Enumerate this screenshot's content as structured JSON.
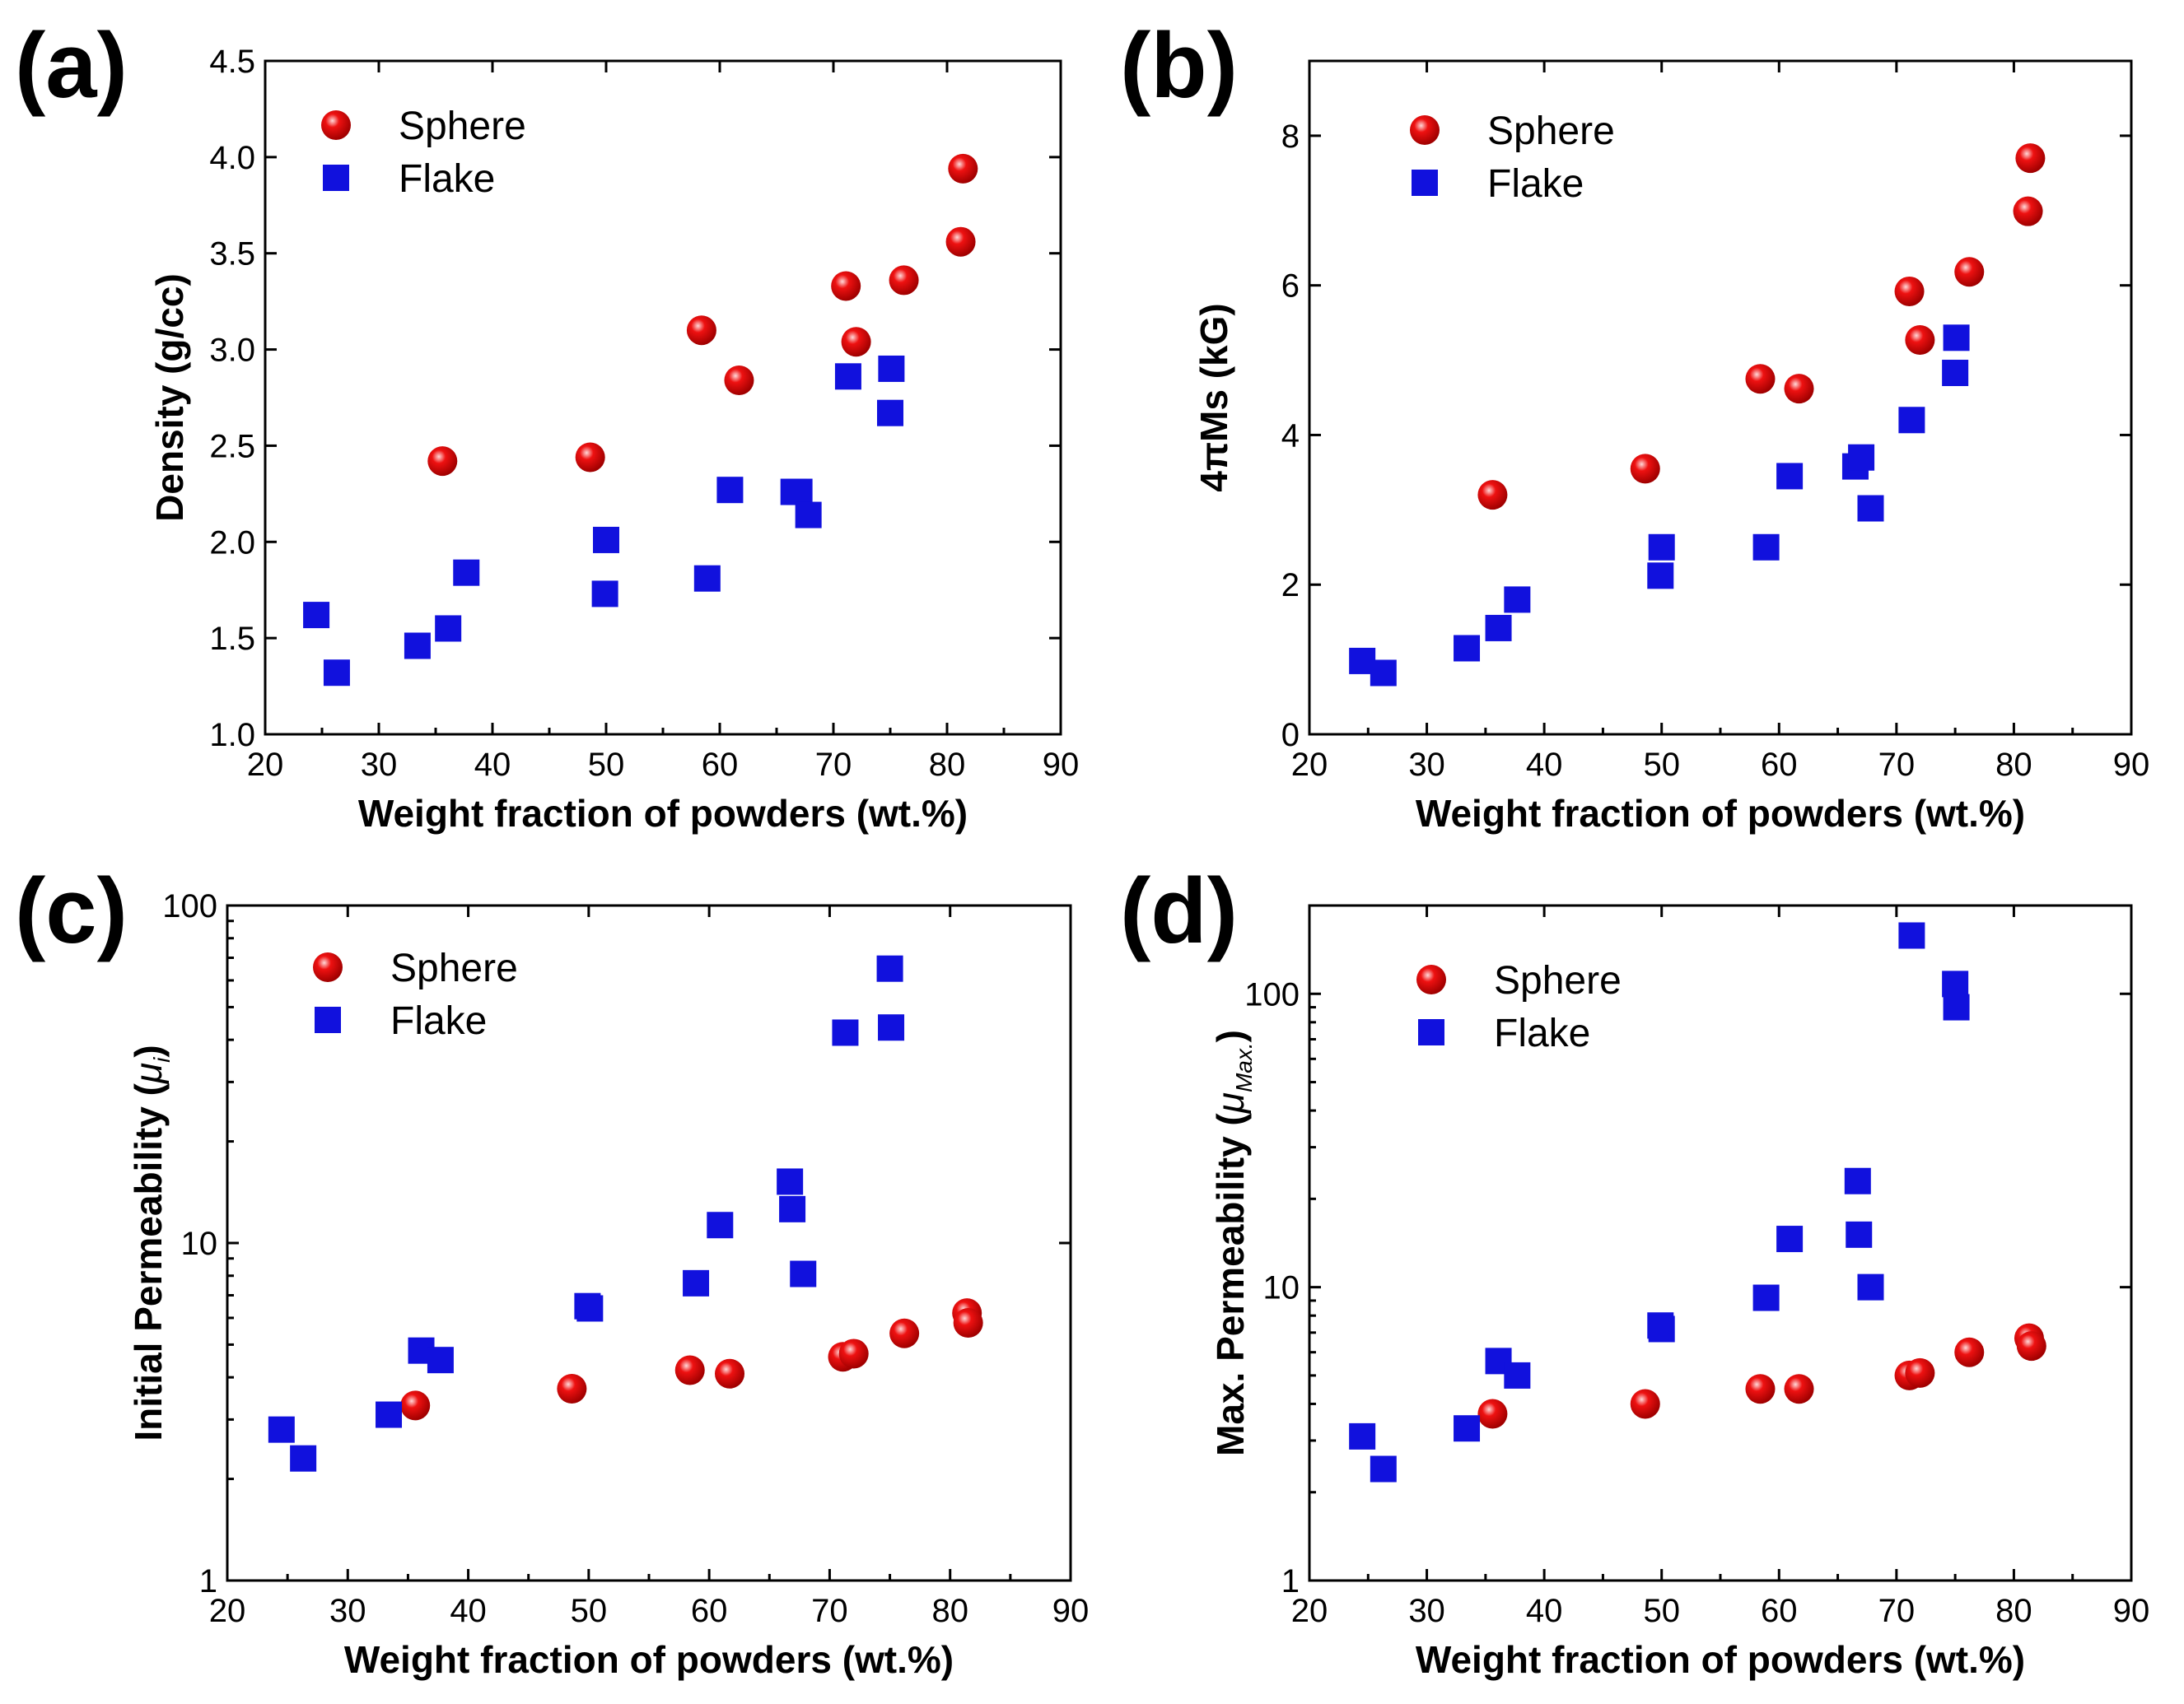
{
  "colors": {
    "sphere": "#ee1111",
    "flake": "#1111dd"
  },
  "chart_data": [
    {
      "type": "scatter",
      "panel_label": "(a)",
      "title": "",
      "xlabel": "Weight fraction of powders (wt.%)",
      "ylabel": "Density (g/cc)",
      "xlim": [
        20,
        90
      ],
      "ylim": [
        1.0,
        4.5
      ],
      "yscale": "linear",
      "xticks": [
        20,
        30,
        40,
        50,
        60,
        70,
        80,
        90
      ],
      "yticks": [
        1.0,
        1.5,
        2.0,
        2.5,
        3.0,
        3.5,
        4.0,
        4.5
      ],
      "ytick_labels": [
        "1.0",
        "1.5",
        "2.0",
        "2.5",
        "3.0",
        "3.5",
        "4.0",
        "4.5"
      ],
      "legend_position": "top-left",
      "series": [
        {
          "name": "Sphere",
          "marker": "circle",
          "x": [
            35.6,
            48.6,
            58.4,
            61.7,
            71.1,
            72.0,
            76.2,
            81.2,
            81.4
          ],
          "y": [
            2.42,
            2.44,
            3.1,
            2.84,
            3.33,
            3.04,
            3.36,
            3.56,
            3.94
          ]
        },
        {
          "name": "Flake",
          "marker": "square",
          "x": [
            24.5,
            26.3,
            33.4,
            36.1,
            37.7,
            49.9,
            50.0,
            58.9,
            60.9,
            66.5,
            67.0,
            67.8,
            71.3,
            75.0,
            75.1
          ],
          "y": [
            1.62,
            1.32,
            1.46,
            1.55,
            1.84,
            1.73,
            2.01,
            1.81,
            2.27,
            2.26,
            2.26,
            2.14,
            2.86,
            2.67,
            2.9
          ]
        }
      ]
    },
    {
      "type": "scatter",
      "panel_label": "(b)",
      "title": "",
      "xlabel": "Weight fraction of powders (wt.%)",
      "ylabel": "4πMs (kG)",
      "xlim": [
        20,
        90
      ],
      "ylim": [
        0,
        9
      ],
      "yscale": "linear",
      "xticks": [
        20,
        30,
        40,
        50,
        60,
        70,
        80,
        90
      ],
      "yticks": [
        0,
        2,
        4,
        6,
        8
      ],
      "ytick_labels": [
        "0",
        "2",
        "4",
        "6",
        "8"
      ],
      "legend_position": "top-left",
      "series": [
        {
          "name": "Sphere",
          "marker": "circle",
          "x": [
            35.6,
            48.6,
            58.4,
            61.7,
            71.1,
            72.0,
            76.2,
            81.2,
            81.4
          ],
          "y": [
            3.2,
            3.55,
            4.75,
            4.62,
            5.92,
            5.27,
            6.18,
            6.99,
            7.7
          ]
        },
        {
          "name": "Flake",
          "marker": "square",
          "x": [
            24.5,
            26.3,
            33.4,
            36.1,
            37.7,
            49.9,
            50.0,
            58.9,
            60.9,
            66.5,
            67.0,
            67.8,
            71.3,
            75.0,
            75.1
          ],
          "y": [
            0.98,
            0.82,
            1.15,
            1.42,
            1.8,
            2.12,
            2.5,
            2.5,
            3.45,
            3.58,
            3.7,
            3.02,
            4.2,
            4.83,
            5.3
          ]
        }
      ]
    },
    {
      "type": "scatter",
      "panel_label": "(c)",
      "title": "",
      "xlabel": "Weight fraction of powders (wt.%)",
      "ylabel": "Initial Permeability (μi)",
      "ylabel_main": "Initial Permeability (",
      "ylabel_symbol": "μ",
      "ylabel_sub": "i",
      "ylabel_close": ")",
      "xlim": [
        20,
        90
      ],
      "ylim": [
        1,
        100
      ],
      "yscale": "log",
      "xticks": [
        20,
        30,
        40,
        50,
        60,
        70,
        80,
        90
      ],
      "yticks": [
        1,
        10,
        100
      ],
      "ytick_labels": [
        "1",
        "10",
        "100"
      ],
      "legend_position": "top-left",
      "series": [
        {
          "name": "Sphere",
          "marker": "circle",
          "x": [
            35.6,
            48.6,
            58.4,
            61.7,
            71.1,
            72.0,
            76.2,
            81.4,
            81.5
          ],
          "y": [
            3.3,
            3.7,
            4.2,
            4.1,
            4.6,
            4.7,
            5.4,
            6.2,
            5.8
          ]
        },
        {
          "name": "Flake",
          "marker": "square",
          "x": [
            24.5,
            26.3,
            33.4,
            36.1,
            37.7,
            49.9,
            50.1,
            58.9,
            60.9,
            66.7,
            66.9,
            67.8,
            71.3,
            75.0,
            75.1
          ],
          "y": [
            2.8,
            2.3,
            3.1,
            4.8,
            4.5,
            6.5,
            6.4,
            7.6,
            11.3,
            15.2,
            12.6,
            8.1,
            42.0,
            65.0,
            43.5
          ]
        }
      ]
    },
    {
      "type": "scatter",
      "panel_label": "(d)",
      "title": "",
      "xlabel": "Weight fraction of powders (wt.%)",
      "ylabel": "Max. Permeability (μMax.)",
      "ylabel_main": "Max. Permeability (",
      "ylabel_symbol": "μ",
      "ylabel_sub": "Max.",
      "ylabel_close": ")",
      "xlim": [
        20,
        90
      ],
      "ylim": [
        1,
        200
      ],
      "yscale": "log",
      "xticks": [
        20,
        30,
        40,
        50,
        60,
        70,
        80,
        90
      ],
      "yticks": [
        1,
        10,
        100
      ],
      "ytick_labels": [
        "1",
        "10",
        "100"
      ],
      "legend_position": "top-left",
      "series": [
        {
          "name": "Sphere",
          "marker": "circle",
          "x": [
            35.6,
            48.6,
            58.4,
            61.7,
            71.1,
            72.0,
            76.2,
            81.3,
            81.5
          ],
          "y": [
            3.7,
            4.0,
            4.5,
            4.5,
            5.0,
            5.1,
            6.0,
            6.7,
            6.3
          ]
        },
        {
          "name": "Flake",
          "marker": "square",
          "x": [
            24.5,
            26.3,
            33.4,
            36.1,
            37.7,
            49.9,
            50.0,
            58.9,
            60.9,
            66.7,
            66.8,
            67.8,
            71.3,
            75.0,
            75.1
          ],
          "y": [
            3.1,
            2.4,
            3.3,
            5.6,
            5.0,
            7.4,
            7.2,
            9.2,
            14.6,
            23.0,
            15.1,
            10.0,
            158.0,
            108.0,
            90.0
          ]
        }
      ]
    }
  ]
}
